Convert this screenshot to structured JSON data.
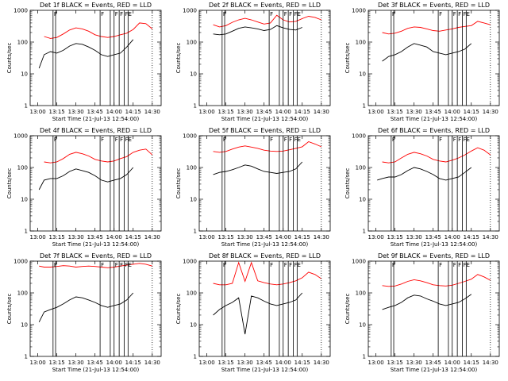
{
  "figure": {
    "ylabel": "Counts/sec",
    "xlabel": "Start Time (21-Jul-13 12:54:00)"
  },
  "colors": {
    "events": "#000000",
    "lld": "#ff0000",
    "axes": "#000000",
    "background": "#ffffff"
  },
  "chart_data": [
    {
      "type": "line",
      "title": "Det 1f BLACK = Events, RED = LLD",
      "xlabel": "Start Time (21-Jul-13 12:54:00)",
      "ylabel": "Counts/sec",
      "yscale": "log",
      "xlim": [
        "12:54",
        "14:37"
      ],
      "ylim": [
        1,
        1000
      ],
      "xticks": [
        "13:00",
        "13:15",
        "13:30",
        "13:45",
        "14:00",
        "14:15",
        "14:30"
      ],
      "yticks": [
        "1",
        "10",
        "100",
        "1000"
      ],
      "x": [
        "13:01",
        "13:05",
        "13:10",
        "13:15",
        "13:20",
        "13:25",
        "13:30",
        "13:35",
        "13:40",
        "13:45",
        "13:50",
        "13:55",
        "14:00",
        "14:05",
        "14:10",
        "14:15",
        "14:20",
        "14:25",
        "14:30"
      ],
      "series": [
        {
          "name": "LLD",
          "color": "red",
          "values": [
            null,
            150,
            130,
            140,
            180,
            240,
            280,
            260,
            220,
            170,
            150,
            140,
            150,
            170,
            190,
            250,
            400,
            380,
            260
          ]
        },
        {
          "name": "Events",
          "color": "black",
          "values": [
            15,
            40,
            50,
            45,
            55,
            75,
            90,
            85,
            70,
            55,
            40,
            35,
            40,
            45,
            70,
            120,
            null,
            null,
            null
          ]
        }
      ],
      "vlines": [
        "13:12",
        "13:14",
        "13:49",
        "13:57",
        "14:00",
        "14:04",
        "14:08",
        "14:11"
      ],
      "dotted_vlines": [
        "14:30"
      ],
      "markers": [
        "F",
        "F",
        "F",
        "F",
        "FE"
      ]
    },
    {
      "type": "line",
      "title": "Det 2f BLACK = Events, RED = LLD",
      "xlabel": "Start Time (21-Jul-13 12:54:00)",
      "ylabel": "Counts/sec",
      "yscale": "log",
      "xlim": [
        "12:54",
        "14:37"
      ],
      "ylim": [
        1,
        1000
      ],
      "xticks": [
        "13:00",
        "13:15",
        "13:30",
        "13:45",
        "14:00",
        "14:15",
        "14:30"
      ],
      "yticks": [
        "1",
        "10",
        "100",
        "1000"
      ],
      "x": [
        "13:01",
        "13:05",
        "13:10",
        "13:15",
        "13:20",
        "13:25",
        "13:30",
        "13:35",
        "13:40",
        "13:45",
        "13:50",
        "13:55",
        "14:00",
        "14:05",
        "14:10",
        "14:15",
        "14:20",
        "14:25",
        "14:30"
      ],
      "series": [
        {
          "name": "LLD",
          "color": "red",
          "values": [
            null,
            350,
            300,
            330,
            420,
            500,
            560,
            500,
            430,
            370,
            400,
            700,
            500,
            430,
            450,
            550,
            650,
            600,
            500
          ]
        },
        {
          "name": "Events",
          "color": "black",
          "values": [
            null,
            180,
            170,
            180,
            220,
            270,
            300,
            280,
            260,
            230,
            250,
            330,
            280,
            250,
            240,
            290,
            null,
            null,
            null
          ]
        }
      ],
      "vlines": [
        "13:12",
        "13:14",
        "13:49",
        "13:57",
        "14:00",
        "14:04",
        "14:08",
        "14:11"
      ],
      "dotted_vlines": [
        "14:30"
      ],
      "markers": [
        "F",
        "F",
        "F",
        "F",
        "FE"
      ]
    },
    {
      "type": "line",
      "title": "Det 3f BLACK = Events, RED = LLD",
      "xlabel": "Start Time (21-Jul-13 12:54:00)",
      "ylabel": "Counts/sec",
      "yscale": "log",
      "xlim": [
        "12:54",
        "14:37"
      ],
      "ylim": [
        1,
        1000
      ],
      "xticks": [
        "13:00",
        "13:15",
        "13:30",
        "13:45",
        "14:00",
        "14:15",
        "14:30"
      ],
      "yticks": [
        "1",
        "10",
        "100",
        "1000"
      ],
      "x": [
        "13:01",
        "13:05",
        "13:10",
        "13:15",
        "13:20",
        "13:25",
        "13:30",
        "13:35",
        "13:40",
        "13:45",
        "13:50",
        "13:55",
        "14:00",
        "14:05",
        "14:10",
        "14:15",
        "14:20",
        "14:25",
        "14:30"
      ],
      "series": [
        {
          "name": "LLD",
          "color": "red",
          "values": [
            null,
            200,
            180,
            190,
            220,
            270,
            300,
            290,
            260,
            230,
            220,
            240,
            260,
            290,
            310,
            330,
            450,
            400,
            350
          ]
        },
        {
          "name": "Events",
          "color": "black",
          "values": [
            null,
            25,
            35,
            40,
            50,
            70,
            90,
            80,
            70,
            50,
            45,
            40,
            45,
            50,
            60,
            90,
            null,
            null,
            null
          ]
        }
      ],
      "vlines": [
        "13:12",
        "13:14",
        "13:49",
        "13:57",
        "14:00",
        "14:04",
        "14:08",
        "14:11"
      ],
      "dotted_vlines": [
        "14:30"
      ],
      "markers": [
        "F",
        "F",
        "F",
        "F",
        "FE"
      ]
    },
    {
      "type": "line",
      "title": "Det 4f BLACK = Events, RED = LLD",
      "xlabel": "Start Time (21-Jul-13 12:54:00)",
      "ylabel": "Counts/sec",
      "yscale": "log",
      "xlim": [
        "12:54",
        "14:37"
      ],
      "ylim": [
        1,
        1000
      ],
      "xticks": [
        "13:00",
        "13:15",
        "13:30",
        "13:45",
        "14:00",
        "14:15",
        "14:30"
      ],
      "yticks": [
        "1",
        "10",
        "100",
        "1000"
      ],
      "x": [
        "13:01",
        "13:05",
        "13:10",
        "13:15",
        "13:20",
        "13:25",
        "13:30",
        "13:35",
        "13:40",
        "13:45",
        "13:50",
        "13:55",
        "14:00",
        "14:05",
        "14:10",
        "14:15",
        "14:20",
        "14:25",
        "14:30"
      ],
      "series": [
        {
          "name": "LLD",
          "color": "red",
          "values": [
            null,
            150,
            140,
            150,
            190,
            260,
            300,
            270,
            230,
            180,
            160,
            150,
            160,
            190,
            220,
            300,
            350,
            380,
            250
          ]
        },
        {
          "name": "Events",
          "color": "black",
          "values": [
            20,
            40,
            45,
            45,
            55,
            75,
            90,
            80,
            70,
            55,
            40,
            35,
            40,
            45,
            60,
            100,
            null,
            null,
            null
          ]
        }
      ],
      "vlines": [
        "13:12",
        "13:14",
        "13:49",
        "13:57",
        "14:00",
        "14:04",
        "14:08",
        "14:11"
      ],
      "dotted_vlines": [
        "14:30"
      ],
      "markers": [
        "F",
        "F",
        "F",
        "F",
        "FE"
      ]
    },
    {
      "type": "line",
      "title": "Det 5f BLACK = Events, RED = LLD",
      "xlabel": "Start Time (21-Jul-13 12:54:00)",
      "ylabel": "Counts/sec",
      "yscale": "log",
      "xlim": [
        "12:54",
        "14:37"
      ],
      "ylim": [
        1,
        1000
      ],
      "xticks": [
        "13:00",
        "13:15",
        "13:30",
        "13:45",
        "14:00",
        "14:15",
        "14:30"
      ],
      "yticks": [
        "1",
        "10",
        "100",
        "1000"
      ],
      "x": [
        "13:01",
        "13:05",
        "13:10",
        "13:15",
        "13:20",
        "13:25",
        "13:30",
        "13:35",
        "13:40",
        "13:45",
        "13:50",
        "13:55",
        "14:00",
        "14:05",
        "14:10",
        "14:15",
        "14:20",
        "14:25",
        "14:30"
      ],
      "series": [
        {
          "name": "LLD",
          "color": "red",
          "values": [
            null,
            320,
            300,
            320,
            380,
            440,
            480,
            440,
            400,
            350,
            330,
            320,
            330,
            360,
            400,
            450,
            650,
            550,
            450
          ]
        },
        {
          "name": "Events",
          "color": "black",
          "values": [
            null,
            60,
            70,
            75,
            85,
            100,
            120,
            110,
            90,
            75,
            70,
            65,
            70,
            75,
            90,
            150,
            null,
            null,
            null
          ]
        }
      ],
      "vlines": [
        "13:12",
        "13:14",
        "13:49",
        "13:57",
        "14:00",
        "14:04",
        "14:08",
        "14:11"
      ],
      "dotted_vlines": [
        "14:30"
      ],
      "markers": [
        "F",
        "F",
        "F",
        "F",
        "FE"
      ]
    },
    {
      "type": "line",
      "title": "Det 6f BLACK = Events, RED = LLD",
      "xlabel": "Start Time (21-Jul-13 12:54:00)",
      "ylabel": "Counts/sec",
      "yscale": "log",
      "xlim": [
        "12:54",
        "14:37"
      ],
      "ylim": [
        1,
        1000
      ],
      "xticks": [
        "13:00",
        "13:15",
        "13:30",
        "13:45",
        "14:00",
        "14:15",
        "14:30"
      ],
      "yticks": [
        "1",
        "10",
        "100",
        "1000"
      ],
      "x": [
        "13:01",
        "13:05",
        "13:10",
        "13:15",
        "13:20",
        "13:25",
        "13:30",
        "13:35",
        "13:40",
        "13:45",
        "13:50",
        "13:55",
        "14:00",
        "14:05",
        "14:10",
        "14:15",
        "14:20",
        "14:25",
        "14:30"
      ],
      "series": [
        {
          "name": "LLD",
          "color": "red",
          "values": [
            null,
            150,
            140,
            150,
            200,
            260,
            300,
            270,
            230,
            180,
            160,
            150,
            170,
            200,
            250,
            330,
            420,
            350,
            250
          ]
        },
        {
          "name": "Events",
          "color": "black",
          "values": [
            40,
            45,
            50,
            50,
            60,
            80,
            100,
            90,
            75,
            60,
            45,
            40,
            45,
            50,
            70,
            100,
            null,
            null,
            null
          ]
        }
      ],
      "vlines": [
        "13:12",
        "13:14",
        "13:49",
        "13:57",
        "14:00",
        "14:04",
        "14:08",
        "14:11"
      ],
      "dotted_vlines": [
        "14:30"
      ],
      "markers": [
        "F",
        "F",
        "F",
        "F",
        "FE"
      ]
    },
    {
      "type": "line",
      "title": "Det 7f BLACK = Events, RED = LLD",
      "xlabel": "Start Time (21-Jul-13 12:54:00)",
      "ylabel": "Counts/sec",
      "yscale": "log",
      "xlim": [
        "12:54",
        "14:37"
      ],
      "ylim": [
        1,
        1000
      ],
      "xticks": [
        "13:00",
        "13:15",
        "13:30",
        "13:45",
        "14:00",
        "14:15",
        "14:30"
      ],
      "yticks": [
        "1",
        "10",
        "100",
        "1000"
      ],
      "x": [
        "13:01",
        "13:05",
        "13:10",
        "13:15",
        "13:20",
        "13:25",
        "13:30",
        "13:35",
        "13:40",
        "13:45",
        "13:50",
        "13:55",
        "14:00",
        "14:05",
        "14:10",
        "14:15",
        "14:20",
        "14:25",
        "14:30"
      ],
      "series": [
        {
          "name": "LLD",
          "color": "red",
          "values": [
            700,
            650,
            650,
            680,
            720,
            700,
            650,
            680,
            700,
            680,
            650,
            620,
            650,
            700,
            750,
            800,
            850,
            800,
            700
          ]
        },
        {
          "name": "Events",
          "color": "black",
          "values": [
            12,
            25,
            30,
            35,
            45,
            60,
            75,
            70,
            60,
            50,
            40,
            35,
            40,
            45,
            60,
            100,
            null,
            null,
            null
          ]
        }
      ],
      "vlines": [
        "13:12",
        "13:14",
        "13:49",
        "13:57",
        "14:00",
        "14:04",
        "14:08",
        "14:11"
      ],
      "dotted_vlines": [
        "14:30"
      ],
      "markers": [
        "F",
        "F",
        "F",
        "F",
        "FE"
      ]
    },
    {
      "type": "line",
      "title": "Det 8f BLACK = Events, RED = LLD",
      "xlabel": "Start Time (21-Jul-13 12:54:00)",
      "ylabel": "Counts/sec",
      "yscale": "log",
      "xlim": [
        "12:54",
        "14:37"
      ],
      "ylim": [
        1,
        1000
      ],
      "xticks": [
        "13:00",
        "13:15",
        "13:30",
        "13:45",
        "14:00",
        "14:15",
        "14:30"
      ],
      "yticks": [
        "1",
        "10",
        "100",
        "1000"
      ],
      "x": [
        "13:01",
        "13:05",
        "13:10",
        "13:15",
        "13:20",
        "13:25",
        "13:30",
        "13:35",
        "13:40",
        "13:45",
        "13:50",
        "13:55",
        "14:00",
        "14:05",
        "14:10",
        "14:15",
        "14:20",
        "14:25",
        "14:30"
      ],
      "series": [
        {
          "name": "LLD",
          "color": "red",
          "values": [
            null,
            200,
            180,
            180,
            200,
            900,
            230,
            900,
            240,
            210,
            190,
            180,
            190,
            210,
            240,
            300,
            450,
            380,
            280
          ]
        },
        {
          "name": "Events",
          "color": "black",
          "values": [
            null,
            20,
            30,
            40,
            50,
            70,
            5,
            80,
            70,
            55,
            45,
            40,
            45,
            50,
            60,
            100,
            null,
            null,
            null
          ]
        }
      ],
      "vlines": [
        "13:12",
        "13:14",
        "13:49",
        "13:57",
        "14:00",
        "14:04",
        "14:08",
        "14:11"
      ],
      "dotted_vlines": [
        "14:30"
      ],
      "markers": [
        "F",
        "F",
        "F",
        "F",
        "FE"
      ]
    },
    {
      "type": "line",
      "title": "Det 9f BLACK = Events, RED = LLD",
      "xlabel": "Start Time (21-Jul-13 12:54:00)",
      "ylabel": "Counts/sec",
      "yscale": "log",
      "xlim": [
        "12:54",
        "14:37"
      ],
      "ylim": [
        1,
        1000
      ],
      "xticks": [
        "13:00",
        "13:15",
        "13:30",
        "13:45",
        "14:00",
        "14:15",
        "14:30"
      ],
      "yticks": [
        "1",
        "10",
        "100",
        "1000"
      ],
      "x": [
        "13:01",
        "13:05",
        "13:10",
        "13:15",
        "13:20",
        "13:25",
        "13:30",
        "13:35",
        "13:40",
        "13:45",
        "13:50",
        "13:55",
        "14:00",
        "14:05",
        "14:10",
        "14:15",
        "14:20",
        "14:25",
        "14:30"
      ],
      "series": [
        {
          "name": "LLD",
          "color": "red",
          "values": [
            null,
            170,
            160,
            165,
            190,
            230,
            260,
            240,
            210,
            180,
            170,
            165,
            175,
            200,
            230,
            270,
            380,
            320,
            250
          ]
        },
        {
          "name": "Events",
          "color": "black",
          "values": [
            null,
            30,
            35,
            40,
            50,
            70,
            85,
            80,
            65,
            55,
            45,
            40,
            45,
            50,
            65,
            90,
            null,
            null,
            null
          ]
        }
      ],
      "vlines": [
        "13:12",
        "13:14",
        "13:49",
        "13:57",
        "14:00",
        "14:04",
        "14:08",
        "14:11"
      ],
      "dotted_vlines": [
        "14:30"
      ],
      "markers": [
        "F",
        "F",
        "F",
        "F",
        "FE"
      ]
    }
  ]
}
